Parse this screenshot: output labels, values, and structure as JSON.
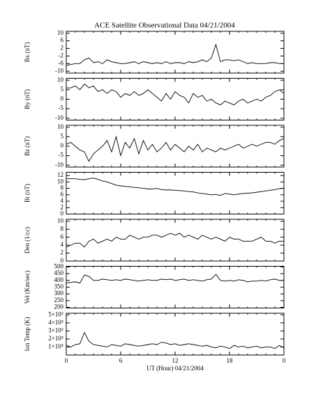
{
  "title": "ACE Satellite Observational Data   04/21/2004",
  "xlabel": "UT (Hour)   04/21/2004",
  "chart_data": [
    {
      "type": "line",
      "ylabel": "Bx (nT)",
      "color": "#000000",
      "xlim": [
        0,
        24
      ],
      "xticks": [
        0,
        6,
        12,
        18,
        {
          "value": 24,
          "label": "0"
        }
      ],
      "ylim": [
        -11,
        11
      ],
      "yticks": [
        10,
        6,
        2,
        -2,
        -6,
        -10
      ],
      "x": [
        0,
        0.5,
        1,
        1.5,
        2,
        2.5,
        3,
        3.5,
        4,
        4.5,
        5,
        5.5,
        6,
        6.5,
        7,
        7.5,
        8,
        8.5,
        9,
        9.5,
        10,
        10.5,
        11,
        11.5,
        12,
        12.5,
        13,
        13.5,
        14,
        14.5,
        15,
        15.5,
        16,
        16.5,
        17,
        17.5,
        18,
        18.5,
        19,
        19.5,
        20,
        20.5,
        21,
        21.5,
        22,
        22.5,
        23,
        23.5,
        24
      ],
      "values": [
        -7,
        -6.5,
        -6,
        -6,
        -4,
        -3,
        -5.5,
        -5,
        -6,
        -4,
        -5,
        -5.5,
        -6,
        -6,
        -5.5,
        -5,
        -6,
        -5,
        -5.5,
        -6,
        -5.5,
        -6,
        -5,
        -6,
        -5.5,
        -5.5,
        -6,
        -5,
        -5.5,
        -5,
        -4,
        -5,
        -3,
        4,
        -5,
        -4,
        -4,
        -4.5,
        -4,
        -5,
        -6,
        -5.5,
        -6,
        -6,
        -6,
        -5.5,
        -5.5,
        -6,
        -6
      ]
    },
    {
      "type": "line",
      "ylabel": "By (nT)",
      "color": "#000000",
      "xlim": [
        0,
        24
      ],
      "xticks": [
        0,
        6,
        12,
        18,
        {
          "value": 24,
          "label": "0"
        }
      ],
      "ylim": [
        -11,
        11
      ],
      "yticks": [
        10,
        5,
        0,
        -5,
        -10
      ],
      "x": [
        0,
        0.5,
        1,
        1.5,
        2,
        2.5,
        3,
        3.5,
        4,
        4.5,
        5,
        5.5,
        6,
        6.5,
        7,
        7.5,
        8,
        8.5,
        9,
        9.5,
        10,
        10.5,
        11,
        11.5,
        12,
        12.5,
        13,
        13.5,
        14,
        14.5,
        15,
        15.5,
        16,
        16.5,
        17,
        17.5,
        18,
        18.5,
        19,
        19.5,
        20,
        20.5,
        21,
        21.5,
        22,
        22.5,
        23,
        23.5,
        24
      ],
      "values": [
        6,
        6,
        7,
        5,
        8,
        6,
        7,
        4,
        5,
        3,
        5,
        4,
        1,
        3,
        2,
        4,
        2,
        3,
        5,
        3,
        1,
        -1,
        3,
        0,
        4,
        2,
        1,
        -2,
        3,
        1,
        2,
        -1,
        0,
        -2,
        -3,
        -1,
        -2,
        -3,
        -1,
        0,
        -2,
        -1,
        0,
        -1,
        1,
        2,
        4,
        5,
        3
      ]
    },
    {
      "type": "line",
      "ylabel": "Bz (nT)",
      "color": "#000000",
      "xlim": [
        0,
        24
      ],
      "xticks": [
        0,
        6,
        12,
        18,
        {
          "value": 24,
          "label": "0"
        }
      ],
      "ylim": [
        -11,
        11
      ],
      "yticks": [
        10,
        5,
        0,
        -5,
        -10
      ],
      "x": [
        0,
        0.5,
        1,
        1.5,
        2,
        2.5,
        3,
        3.5,
        4,
        4.5,
        5,
        5.5,
        6,
        6.5,
        7,
        7.5,
        8,
        8.5,
        9,
        9.5,
        10,
        10.5,
        11,
        11.5,
        12,
        12.5,
        13,
        13.5,
        14,
        14.5,
        15,
        15.5,
        16,
        16.5,
        17,
        17.5,
        18,
        18.5,
        19,
        19.5,
        20,
        20.5,
        21,
        21.5,
        22,
        22.5,
        23,
        23.5,
        24
      ],
      "values": [
        1,
        2,
        0,
        -2,
        -3,
        -8,
        -4,
        -2,
        0,
        3,
        -3,
        5,
        -5,
        2,
        -1,
        4,
        -4,
        3,
        -2,
        1,
        -3,
        -1,
        2,
        -2,
        1,
        -1,
        -3,
        0,
        -2,
        1,
        -3,
        -1,
        -2,
        -3,
        -1,
        -2,
        -1,
        0,
        1,
        -1,
        0,
        1,
        0,
        1,
        2,
        2,
        1,
        3,
        4
      ]
    },
    {
      "type": "line",
      "ylabel": "Bt (nT)",
      "color": "#000000",
      "xlim": [
        0,
        24
      ],
      "xticks": [
        0,
        6,
        12,
        18,
        {
          "value": 24,
          "label": "0"
        }
      ],
      "ylim": [
        0,
        13
      ],
      "yticks": [
        12,
        10,
        8,
        6,
        4,
        2,
        0
      ],
      "x": [
        0,
        0.5,
        1,
        1.5,
        2,
        2.5,
        3,
        3.5,
        4,
        4.5,
        5,
        5.5,
        6,
        6.5,
        7,
        7.5,
        8,
        8.5,
        9,
        9.5,
        10,
        10.5,
        11,
        11.5,
        12,
        12.5,
        13,
        13.5,
        14,
        14.5,
        15,
        15.5,
        16,
        16.5,
        17,
        17.5,
        18,
        18.5,
        19,
        19.5,
        20,
        20.5,
        21,
        21.5,
        22,
        22.5,
        23,
        23.5,
        24
      ],
      "values": [
        11,
        11,
        11,
        10.8,
        10.7,
        11,
        11.2,
        10.8,
        10.3,
        10,
        9.5,
        9,
        8.8,
        8.6,
        8.5,
        8.3,
        8.2,
        8,
        7.8,
        7.8,
        8,
        7.6,
        7.5,
        7.5,
        7.4,
        7.3,
        7.2,
        7,
        6.9,
        6.6,
        6.4,
        6.2,
        6,
        6.1,
        5.8,
        6.4,
        6.2,
        6,
        6.2,
        6.4,
        6.5,
        6.6,
        6.8,
        7,
        7.2,
        7.4,
        7.6,
        7.9,
        8
      ]
    },
    {
      "type": "line",
      "ylabel": "Den (1/cc)",
      "color": "#000000",
      "xlim": [
        0,
        24
      ],
      "xticks": [
        0,
        6,
        12,
        18,
        {
          "value": 24,
          "label": "0"
        }
      ],
      "ylim": [
        0,
        10.5
      ],
      "yticks": [
        10,
        8,
        6,
        4,
        2,
        0
      ],
      "x": [
        0,
        0.5,
        1,
        1.5,
        2,
        2.5,
        3,
        3.5,
        4,
        4.5,
        5,
        5.5,
        6,
        6.5,
        7,
        7.5,
        8,
        8.5,
        9,
        9.5,
        10,
        10.5,
        11,
        11.5,
        12,
        12.5,
        13,
        13.5,
        14,
        14.5,
        15,
        15.5,
        16,
        16.5,
        17,
        17.5,
        18,
        18.5,
        19,
        19.5,
        20,
        20.5,
        21,
        21.5,
        22,
        22.5,
        23,
        23.5,
        24
      ],
      "values": [
        3.5,
        4,
        4.5,
        4.5,
        3.5,
        5,
        5.5,
        4.5,
        5,
        5.5,
        5,
        6,
        5.5,
        5.5,
        6.5,
        6,
        5.5,
        6,
        6,
        6.5,
        6.5,
        6,
        6.5,
        7,
        6.5,
        7,
        6,
        6.5,
        6,
        5.5,
        6.5,
        6,
        5.5,
        6,
        5.5,
        5,
        6,
        5.5,
        5.5,
        5,
        5,
        5,
        5.5,
        6,
        5,
        5,
        4.5,
        5,
        5
      ]
    },
    {
      "type": "line",
      "ylabel": "Vel (Km/sec)",
      "color": "#000000",
      "xlim": [
        0,
        24
      ],
      "xticks": [
        0,
        6,
        12,
        18,
        {
          "value": 24,
          "label": "0"
        }
      ],
      "ylim": [
        195,
        505
      ],
      "yticks": [
        500,
        450,
        400,
        350,
        300,
        250,
        200
      ],
      "x": [
        0,
        0.5,
        1,
        1.5,
        2,
        2.5,
        3,
        3.5,
        4,
        4.5,
        5,
        5.5,
        6,
        6.5,
        7,
        7.5,
        8,
        8.5,
        9,
        9.5,
        10,
        10.5,
        11,
        11.5,
        12,
        12.5,
        13,
        13.5,
        14,
        14.5,
        15,
        15.5,
        16,
        16.5,
        17,
        17.5,
        18,
        18.5,
        19,
        19.5,
        20,
        20.5,
        21,
        21.5,
        22,
        22.5,
        23,
        23.5,
        24
      ],
      "values": [
        380,
        385,
        390,
        380,
        440,
        430,
        400,
        400,
        410,
        405,
        400,
        405,
        400,
        410,
        405,
        400,
        395,
        400,
        405,
        400,
        400,
        410,
        405,
        410,
        400,
        405,
        410,
        400,
        405,
        400,
        395,
        405,
        410,
        445,
        400,
        395,
        400,
        395,
        405,
        400,
        390,
        395,
        395,
        400,
        395,
        405,
        410,
        400,
        400
      ]
    },
    {
      "type": "line",
      "ylabel": "Ion Temp (K)",
      "color": "#000000",
      "xlim": [
        0,
        24
      ],
      "xticks": [
        0,
        6,
        12,
        18,
        {
          "value": 24,
          "label": "0"
        }
      ],
      "ylim": [
        0,
        520000
      ],
      "yticks": [
        {
          "value": 500000,
          "label": "5×10⁵"
        },
        {
          "value": 400000,
          "label": "4×10⁵"
        },
        {
          "value": 300000,
          "label": "3×10⁵"
        },
        {
          "value": 200000,
          "label": "2×10⁵"
        },
        {
          "value": 100000,
          "label": "1×10⁵"
        }
      ],
      "x": [
        0,
        0.5,
        1,
        1.5,
        2,
        2.5,
        3,
        3.5,
        4,
        4.5,
        5,
        5.5,
        6,
        6.5,
        7,
        7.5,
        8,
        8.5,
        9,
        9.5,
        10,
        10.5,
        11,
        11.5,
        12,
        12.5,
        13,
        13.5,
        14,
        14.5,
        15,
        15.5,
        16,
        16.5,
        17,
        17.5,
        18,
        18.5,
        19,
        19.5,
        20,
        20.5,
        21,
        21.5,
        22,
        22.5,
        23,
        23.5,
        24
      ],
      "values": [
        120000,
        100000,
        130000,
        140000,
        280000,
        170000,
        130000,
        120000,
        110000,
        100000,
        130000,
        120000,
        110000,
        140000,
        130000,
        120000,
        110000,
        120000,
        130000,
        140000,
        130000,
        160000,
        150000,
        130000,
        140000,
        120000,
        130000,
        140000,
        130000,
        120000,
        110000,
        120000,
        100000,
        90000,
        110000,
        100000,
        80000,
        120000,
        100000,
        110000,
        90000,
        100000,
        110000,
        90000,
        100000,
        100000,
        80000,
        120000,
        90000
      ]
    }
  ]
}
